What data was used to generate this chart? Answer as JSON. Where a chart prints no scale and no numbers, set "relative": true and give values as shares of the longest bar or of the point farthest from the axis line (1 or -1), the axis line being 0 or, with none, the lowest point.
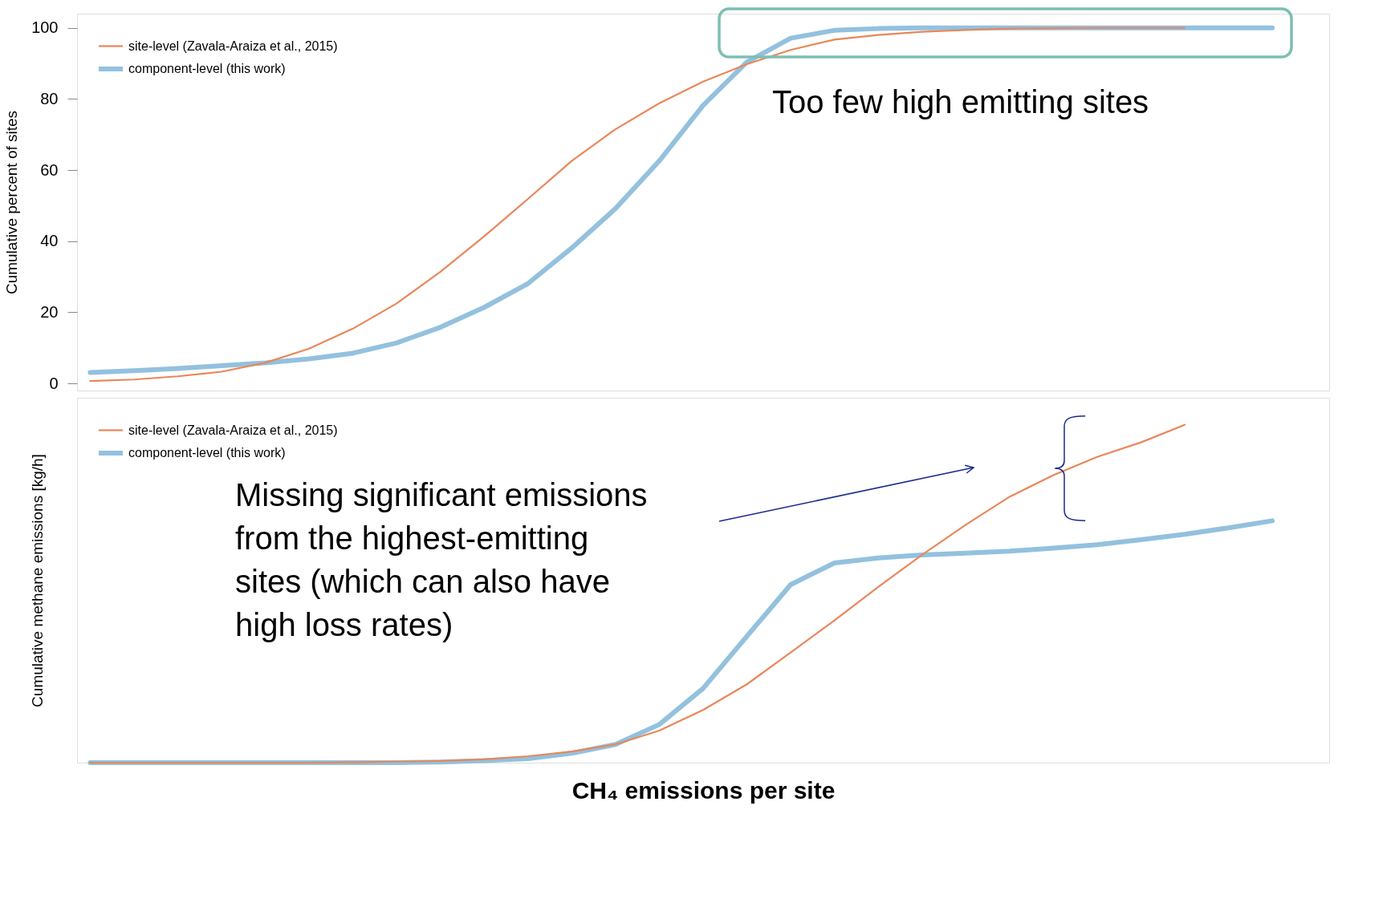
{
  "chart_data": [
    {
      "type": "line",
      "ylabel": "Cumulative percent of sites",
      "ylim": [
        -2,
        104
      ],
      "yticks": [
        0,
        20,
        40,
        60,
        80,
        100
      ],
      "tick_labels": "y",
      "grid": false,
      "legend": "top left",
      "categories": [
        null,
        null,
        null,
        null,
        null,
        null,
        null,
        null,
        null,
        null,
        null,
        null,
        null,
        null,
        null,
        null,
        null,
        null,
        null,
        null,
        null,
        null,
        null,
        null,
        null,
        null,
        null,
        null,
        null
      ],
      "annotations": [
        "Too few high emitting sites"
      ],
      "series": [
        {
          "name": "site-level (Zavala-Araiza et al., 2015)",
          "color": "#e8875a",
          "values": [
            0.7,
            1.1,
            2.0,
            3.3,
            5.8,
            9.8,
            15.4,
            22.5,
            31.4,
            41.4,
            51.9,
            62.6,
            71.5,
            78.8,
            84.9,
            89.8,
            93.8,
            96.7,
            98.0,
            98.9,
            99.4,
            99.8,
            99.9,
            100,
            100,
            100,
            null,
            null,
            null
          ]
        },
        {
          "name": "component-level (this work)",
          "color": "#93c1de",
          "values": [
            3.1,
            3.6,
            4.2,
            5.0,
            5.8,
            6.9,
            8.5,
            11.4,
            15.8,
            21.4,
            28.1,
            38.1,
            49.2,
            62.6,
            78.2,
            90.4,
            97.1,
            99.3,
            99.8,
            100,
            100,
            100,
            100,
            100,
            100,
            100,
            100,
            100,
            null
          ]
        }
      ]
    },
    {
      "type": "line",
      "ylabel": "Cumulative methane emissions [kg/h]",
      "xlabel": "CH₄ emissions per site",
      "relative": true,
      "tick_labels": false,
      "grid": false,
      "legend": "top left",
      "categories": [
        null,
        null,
        null,
        null,
        null,
        null,
        null,
        null,
        null,
        null,
        null,
        null,
        null,
        null,
        null,
        null,
        null,
        null,
        null,
        null,
        null,
        null,
        null,
        null,
        null,
        null,
        null,
        null,
        null
      ],
      "annotations": [
        "Missing significant emissions from the highest-emitting sites (which can also have high loss rates)"
      ],
      "series": [
        {
          "name": "site-level (Zavala-Araiza et al., 2015)",
          "color": "#e8875a",
          "values": [
            0,
            0,
            0,
            0,
            0,
            0,
            0.001,
            0.003,
            0.005,
            0.01,
            0.019,
            0.033,
            0.054,
            0.095,
            0.156,
            0.232,
            0.326,
            0.421,
            0.52,
            0.615,
            0.704,
            0.787,
            0.851,
            0.905,
            0.948,
            1,
            null,
            null,
            null
          ]
        },
        {
          "name": "component-level (this work)",
          "color": "#93c1de",
          "values": [
            0,
            0,
            0,
            0,
            0,
            0,
            0,
            0,
            0.002,
            0.006,
            0.012,
            0.028,
            0.054,
            0.113,
            0.22,
            0.374,
            0.527,
            0.591,
            0.606,
            0.615,
            0.62,
            0.626,
            0.635,
            0.645,
            0.66,
            0.676,
            0.695,
            0.716,
            null
          ]
        }
      ]
    }
  ]
}
